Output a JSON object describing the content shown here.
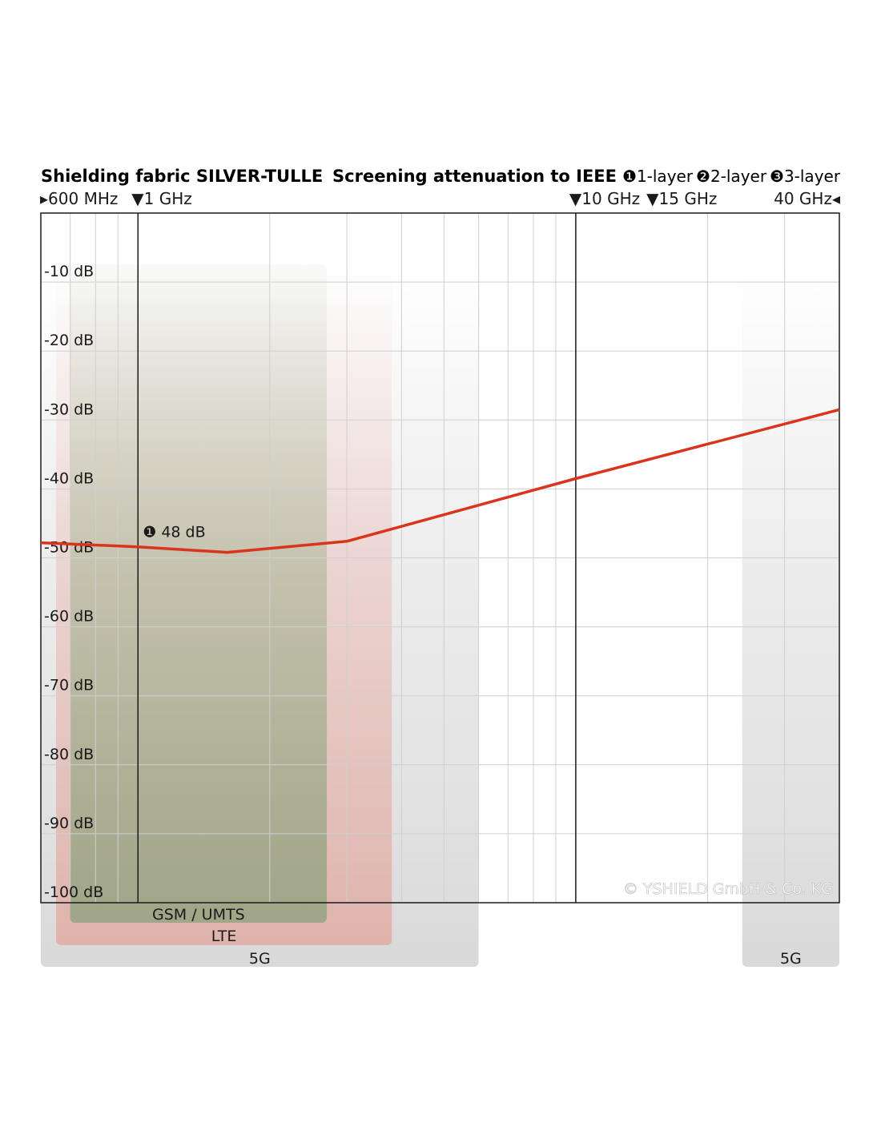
{
  "chart_data": {
    "type": "line",
    "title": "Shielding fabric SILVER-TULLE",
    "subtitle": {
      "prefix": "Screening attenuation to IEEE",
      "layers": [
        {
          "marker": "❶",
          "label": "1-layer"
        },
        {
          "marker": "❷",
          "label": "2-layer"
        },
        {
          "marker": "❸",
          "label": "3-layer"
        }
      ]
    },
    "x_scale": "log",
    "xlim_mhz": [
      600,
      40000
    ],
    "ylim_db": [
      -100,
      0
    ],
    "x_markers": [
      {
        "mhz": 600,
        "label": "600 MHz",
        "marker": "▸"
      },
      {
        "mhz": 1000,
        "label": "1 GHz",
        "marker": "▼"
      },
      {
        "mhz": 10000,
        "label": "10 GHz",
        "marker": "▼"
      },
      {
        "mhz": 15000,
        "label": "15 GHz",
        "marker": "▼"
      },
      {
        "mhz": 40000,
        "label": "40 GHz",
        "marker": "◂"
      }
    ],
    "reference_lines_mhz": [
      1000,
      10000
    ],
    "y_ticks": [
      {
        "value": -10,
        "label": "-10 dB"
      },
      {
        "value": -20,
        "label": "-20 dB"
      },
      {
        "value": -30,
        "label": "-30 dB"
      },
      {
        "value": -40,
        "label": "-40 dB"
      },
      {
        "value": -50,
        "label": "-50 dB"
      },
      {
        "value": -60,
        "label": "-60 dB"
      },
      {
        "value": -70,
        "label": "-70 dB"
      },
      {
        "value": -80,
        "label": "-80 dB"
      },
      {
        "value": -90,
        "label": "-90 dB"
      },
      {
        "value": -100,
        "label": "-100 dB"
      }
    ],
    "grid": true,
    "series": [
      {
        "color": "#d9341c",
        "points": [
          {
            "x_mhz": 600,
            "y_db": -47.8
          },
          {
            "x_mhz": 1000,
            "y_db": -48.4
          },
          {
            "x_mhz": 1600,
            "y_db": -49.2
          },
          {
            "x_mhz": 3000,
            "y_db": -47.6
          },
          {
            "x_mhz": 10000,
            "y_db": -38.5
          },
          {
            "x_mhz": 40000,
            "y_db": -28.5
          }
        ]
      }
    ],
    "annotations": [
      {
        "marker": "❶",
        "text": "48 dB",
        "x_mhz": 1000,
        "y_db": -48.4
      }
    ],
    "bands": [
      {
        "label": "GSM / UMTS",
        "from_mhz": 700,
        "to_mhz": 2700,
        "color": "#8aa07a"
      },
      {
        "label": "LTE",
        "from_mhz": 650,
        "to_mhz": 3800,
        "color": "#e8a096"
      },
      {
        "label": "5G",
        "from_mhz": 600,
        "to_mhz": 6000,
        "color": "#c8c8c8"
      },
      {
        "label": "5G",
        "from_mhz": 24000,
        "to_mhz": 40000,
        "color": "#c8c8c8"
      }
    ],
    "copyright": "© YSHIELD GmbH & Co. KG"
  }
}
